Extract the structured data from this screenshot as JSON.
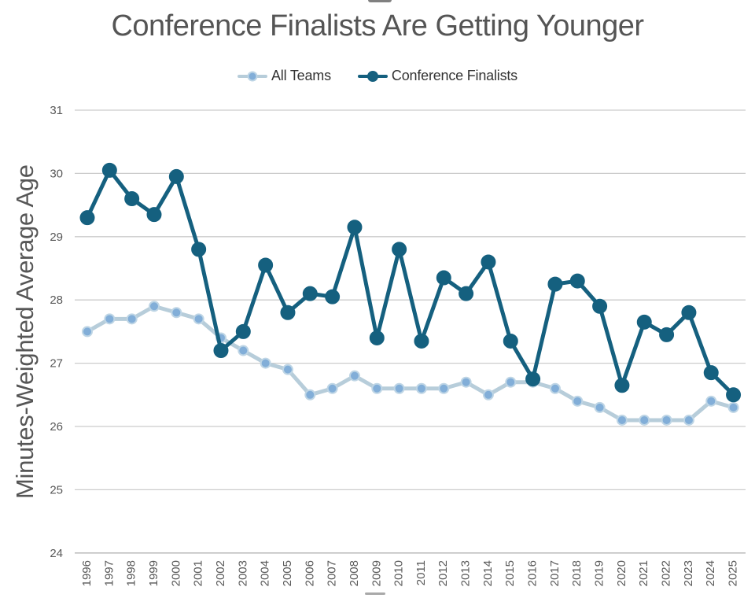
{
  "title": "Conference Finalists Are Getting Younger",
  "colors": {
    "background": "#ffffff",
    "title_text": "#555555",
    "axis_text": "#595959",
    "legend_text": "#333333",
    "gridline": "#cccccc",
    "baseline": "#b3b3b3",
    "all_teams_line": "#b7cdda",
    "all_teams_marker": "#82aed8",
    "finalists": "#15607f"
  },
  "chart_data": {
    "type": "line",
    "title": "Conference Finalists Are Getting Younger",
    "xlabel": "",
    "ylabel": "Minutes-Weighted Average Age",
    "ylim": [
      24,
      31
    ],
    "ytick_step": 1,
    "grid": "horizontal",
    "legend_position": "top",
    "categories": [
      "1996",
      "1997",
      "1998",
      "1999",
      "2000",
      "2001",
      "2002",
      "2003",
      "2004",
      "2005",
      "2006",
      "2007",
      "2008",
      "2009",
      "2010",
      "2011",
      "2012",
      "2013",
      "2014",
      "2015",
      "2016",
      "2017",
      "2018",
      "2019",
      "2020",
      "2021",
      "2022",
      "2023",
      "2024",
      "2025"
    ],
    "series": [
      {
        "name": "All Teams",
        "color": "#b7cdda",
        "marker_fill": "#82aed8",
        "marker_stroke": "#bed5e5",
        "marker_radius": 6,
        "line_width": 5,
        "values": [
          27.5,
          27.7,
          27.7,
          27.9,
          27.8,
          27.7,
          27.4,
          27.2,
          27.0,
          26.9,
          26.5,
          26.6,
          26.8,
          26.6,
          26.6,
          26.6,
          26.6,
          26.7,
          26.5,
          26.7,
          26.7,
          26.6,
          26.4,
          26.3,
          26.1,
          26.1,
          26.1,
          26.1,
          26.4,
          26.3
        ]
      },
      {
        "name": "Conference Finalists",
        "color": "#15607f",
        "marker_fill": "#15607f",
        "marker_stroke": "#15607f",
        "marker_radius": 8.5,
        "line_width": 5,
        "values": [
          29.3,
          30.05,
          29.6,
          29.35,
          29.95,
          28.8,
          27.2,
          27.5,
          28.55,
          27.8,
          28.1,
          28.05,
          29.15,
          27.4,
          28.8,
          27.35,
          28.35,
          28.1,
          28.6,
          27.35,
          26.75,
          28.25,
          28.3,
          27.9,
          26.65,
          27.65,
          27.45,
          27.8,
          26.85,
          26.5
        ]
      }
    ]
  }
}
